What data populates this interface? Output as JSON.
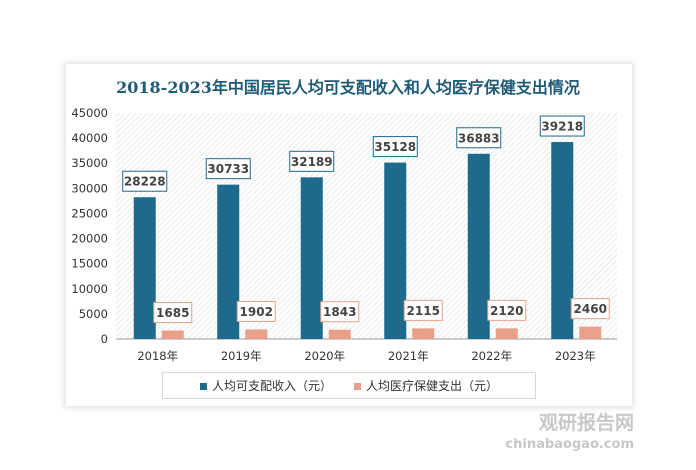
{
  "chart_data": {
    "type": "bar",
    "title": "2018-2023年中国居民人均可支配收入和人均医疗保健支出情况",
    "categories": [
      "2018年",
      "2019年",
      "2020年",
      "2021年",
      "2022年",
      "2023年"
    ],
    "series": [
      {
        "name": "人均可支配收入（元）",
        "color": "#1d6a8c",
        "values": [
          28228,
          30733,
          32189,
          35128,
          36883,
          39218
        ]
      },
      {
        "name": "人均医疗保健支出（元）",
        "color": "#e8a088",
        "values": [
          1685,
          1902,
          1843,
          2115,
          2120,
          2460
        ]
      }
    ],
    "ylim": [
      0,
      45000
    ],
    "yticks": [
      0,
      5000,
      10000,
      15000,
      20000,
      25000,
      30000,
      35000,
      40000,
      45000
    ],
    "grid": false,
    "legend": "bottom",
    "data_labels": true
  },
  "watermark": {
    "brand": "观研报告网",
    "url": "chinabaogao.com"
  }
}
